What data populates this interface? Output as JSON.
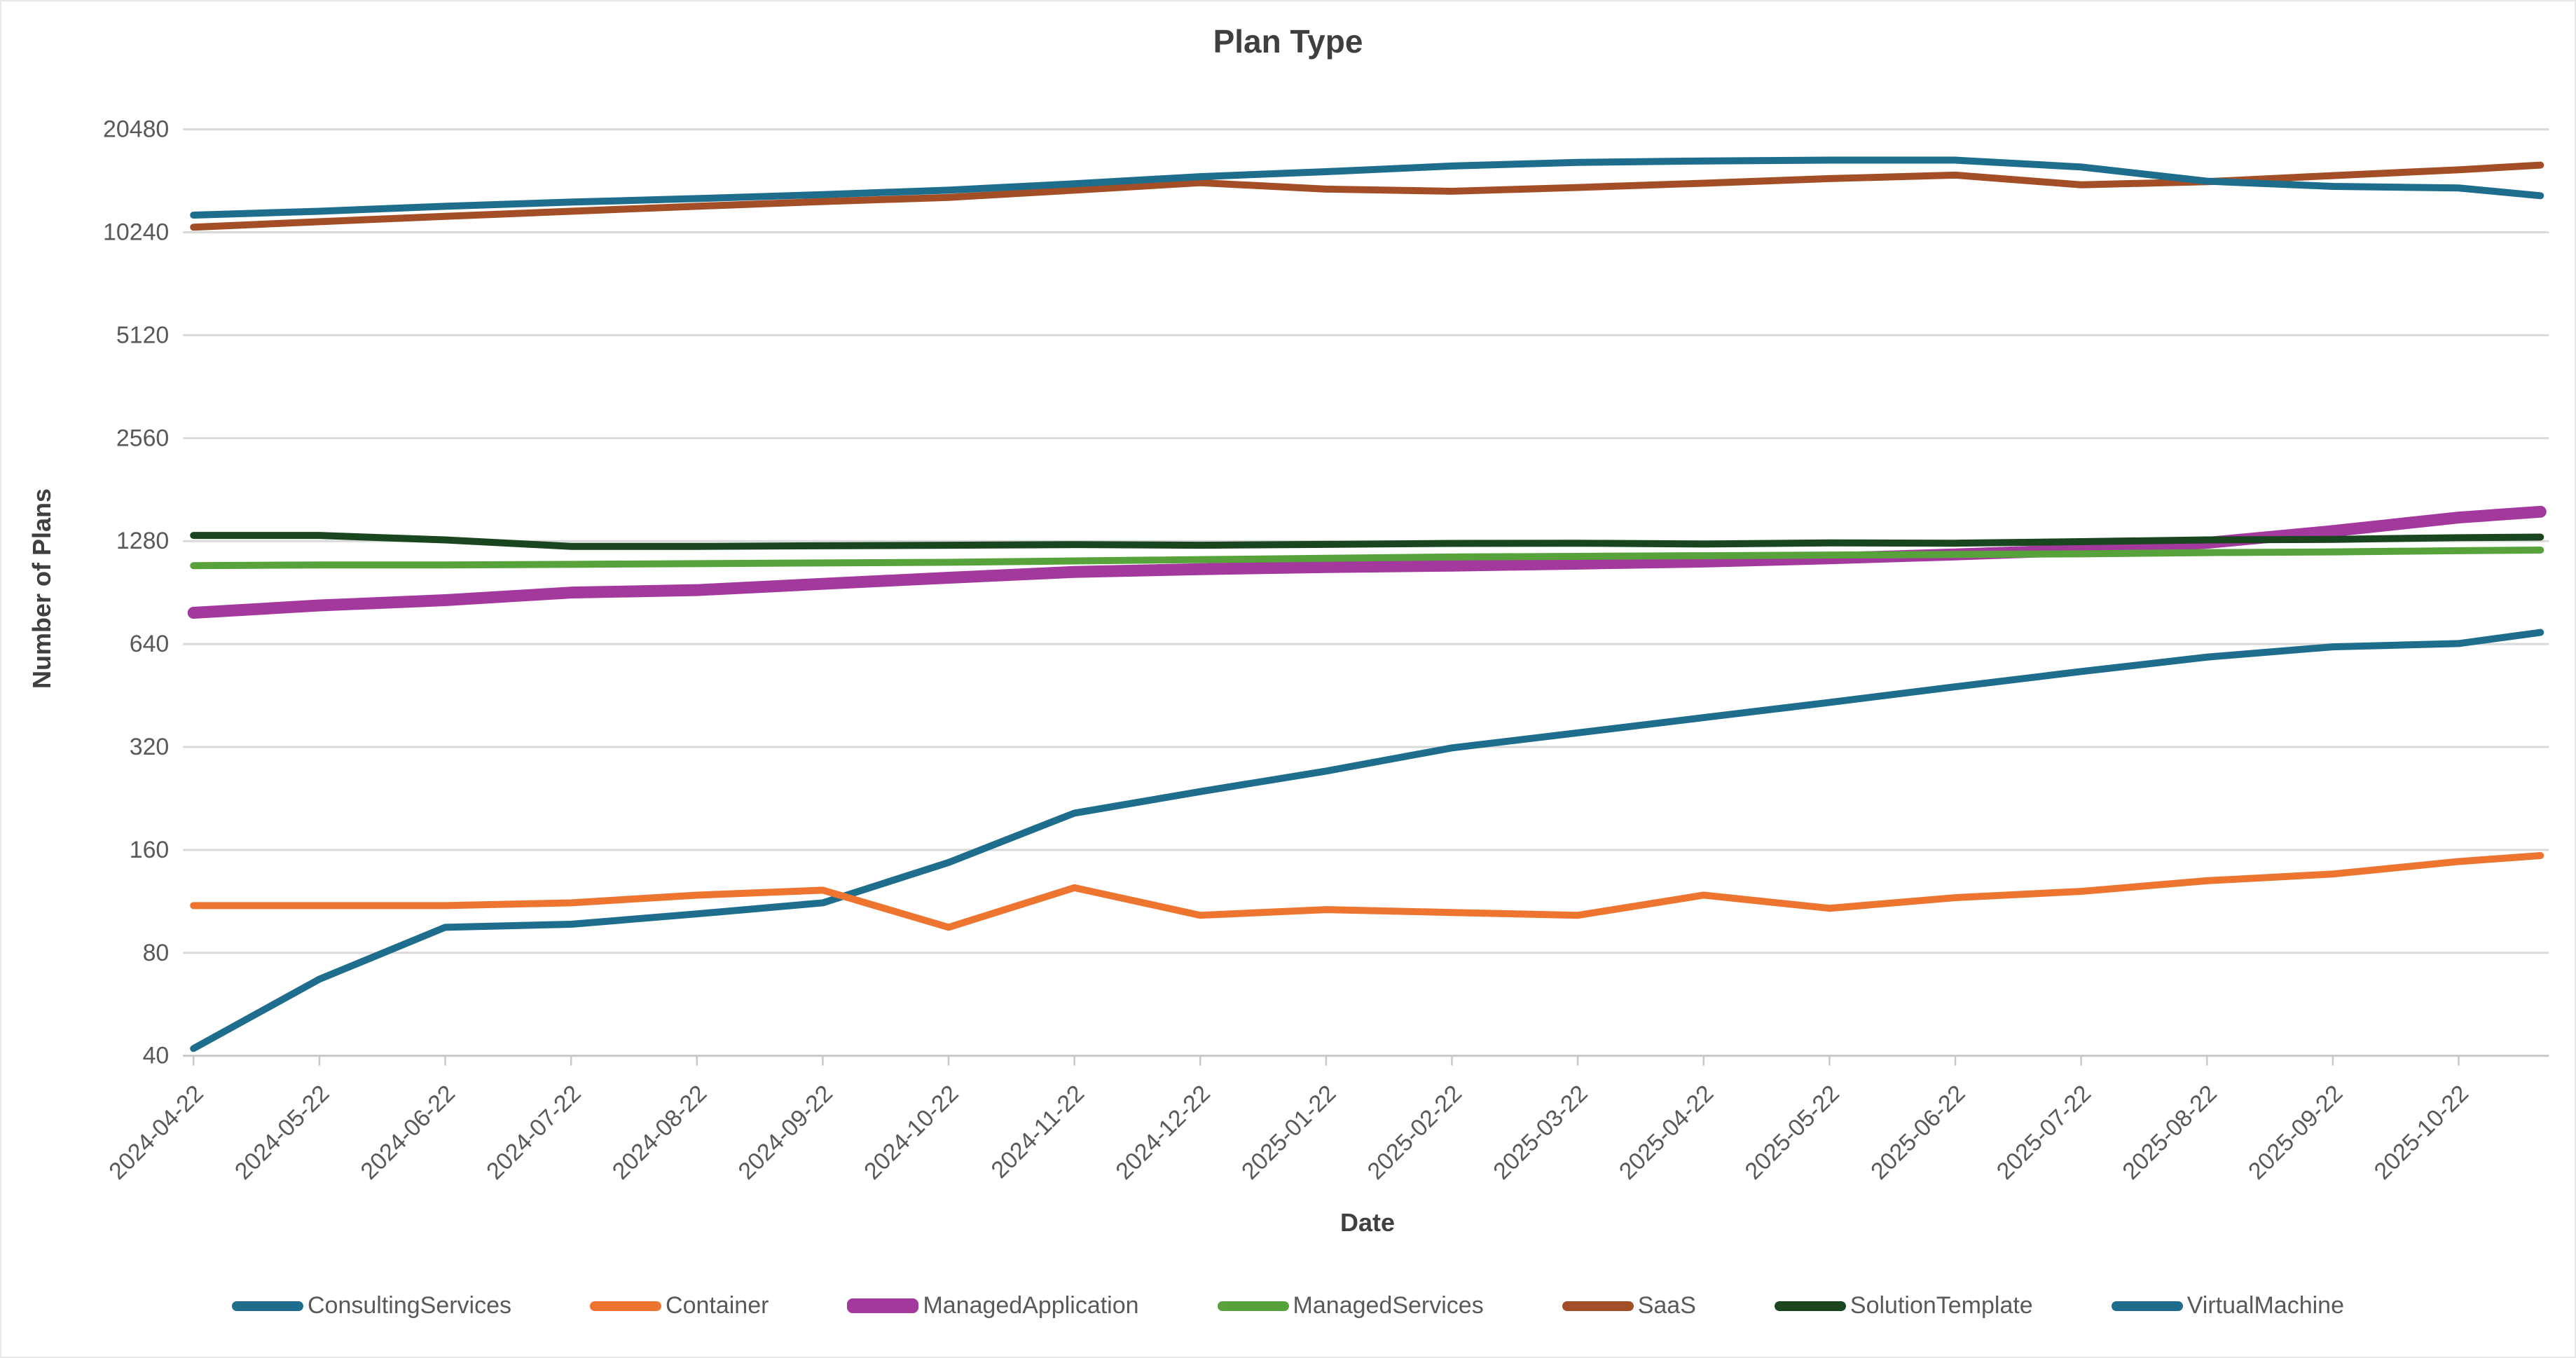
{
  "chart": {
    "title": "Plan Type",
    "x_axis_title": "Date",
    "y_axis_title": "Number of Plans"
  },
  "chart_data": {
    "type": "line",
    "title": "Plan Type",
    "xlabel": "Date",
    "ylabel": "Number of Plans",
    "y_scale": "log2",
    "ylim": [
      40,
      20480
    ],
    "y_ticks": [
      40,
      80,
      160,
      320,
      640,
      1280,
      2560,
      5120,
      10240,
      20480
    ],
    "grid": "horizontal",
    "legend_position": "bottom",
    "x_tick_rotation": -45,
    "categories": [
      "2024-04-22",
      "2024-05-22",
      "2024-06-22",
      "2024-07-22",
      "2024-08-22",
      "2024-09-22",
      "2024-10-22",
      "2024-11-22",
      "2024-12-22",
      "2025-01-22",
      "2025-02-22",
      "2025-03-22",
      "2025-04-22",
      "2025-05-22",
      "2025-06-22",
      "2025-07-22",
      "2025-08-22",
      "2025-09-22",
      "2025-10-22"
    ],
    "note": "Each series has one extra unlabeled data point extending slightly past the last x tick; values are estimates read from the log2-scaled plot.",
    "series": [
      {
        "name": "ConsultingServices",
        "color": "#1f6d8d",
        "line_width": 10,
        "values": [
          42,
          67,
          95,
          97,
          104,
          112,
          147,
          205,
          237,
          272,
          318,
          352,
          390,
          432,
          480,
          532,
          586,
          628,
          642,
          692
        ]
      },
      {
        "name": "Container",
        "color": "#ed7530",
        "line_width": 10,
        "values": [
          110,
          110,
          110,
          112,
          118,
          122,
          95,
          124,
          103,
          107,
          105,
          103,
          118,
          108,
          116,
          121,
          130,
          136,
          148,
          154
        ]
      },
      {
        "name": "ManagedApplication",
        "color": "#a3399c",
        "line_width": 17,
        "values": [
          790,
          830,
          860,
          905,
          920,
          960,
          1000,
          1040,
          1060,
          1075,
          1085,
          1100,
          1115,
          1140,
          1170,
          1205,
          1265,
          1370,
          1500,
          1560
        ]
      },
      {
        "name": "ManagedServices",
        "color": "#58a23c",
        "line_width": 10,
        "values": [
          1085,
          1090,
          1090,
          1095,
          1100,
          1105,
          1110,
          1120,
          1130,
          1140,
          1150,
          1155,
          1160,
          1165,
          1170,
          1175,
          1185,
          1190,
          1200,
          1205
        ]
      },
      {
        "name": "SaaS",
        "color": "#a44e28",
        "line_width": 10,
        "values": [
          10600,
          11000,
          11400,
          11800,
          12200,
          12600,
          12950,
          13600,
          14300,
          13700,
          13500,
          13850,
          14250,
          14700,
          15050,
          14100,
          14400,
          15000,
          15600,
          16100
        ]
      },
      {
        "name": "SolutionTemplate",
        "color": "#1a461f",
        "line_width": 10,
        "values": [
          1330,
          1330,
          1290,
          1235,
          1235,
          1240,
          1245,
          1250,
          1245,
          1252,
          1260,
          1262,
          1255,
          1265,
          1262,
          1275,
          1290,
          1295,
          1310,
          1315
        ]
      },
      {
        "name": "VirtualMachine",
        "color": "#1f6d8d",
        "line_width": 10,
        "values": [
          11500,
          11800,
          12200,
          12550,
          12850,
          13200,
          13600,
          14200,
          14900,
          15400,
          16000,
          16400,
          16550,
          16650,
          16650,
          15900,
          14450,
          13950,
          13800,
          13100
        ]
      }
    ],
    "colors": {
      "grid": "#d9d9d9",
      "axis": "#c8c8c8",
      "tick_text": "#595959",
      "title_text": "#3f3f3f"
    }
  }
}
